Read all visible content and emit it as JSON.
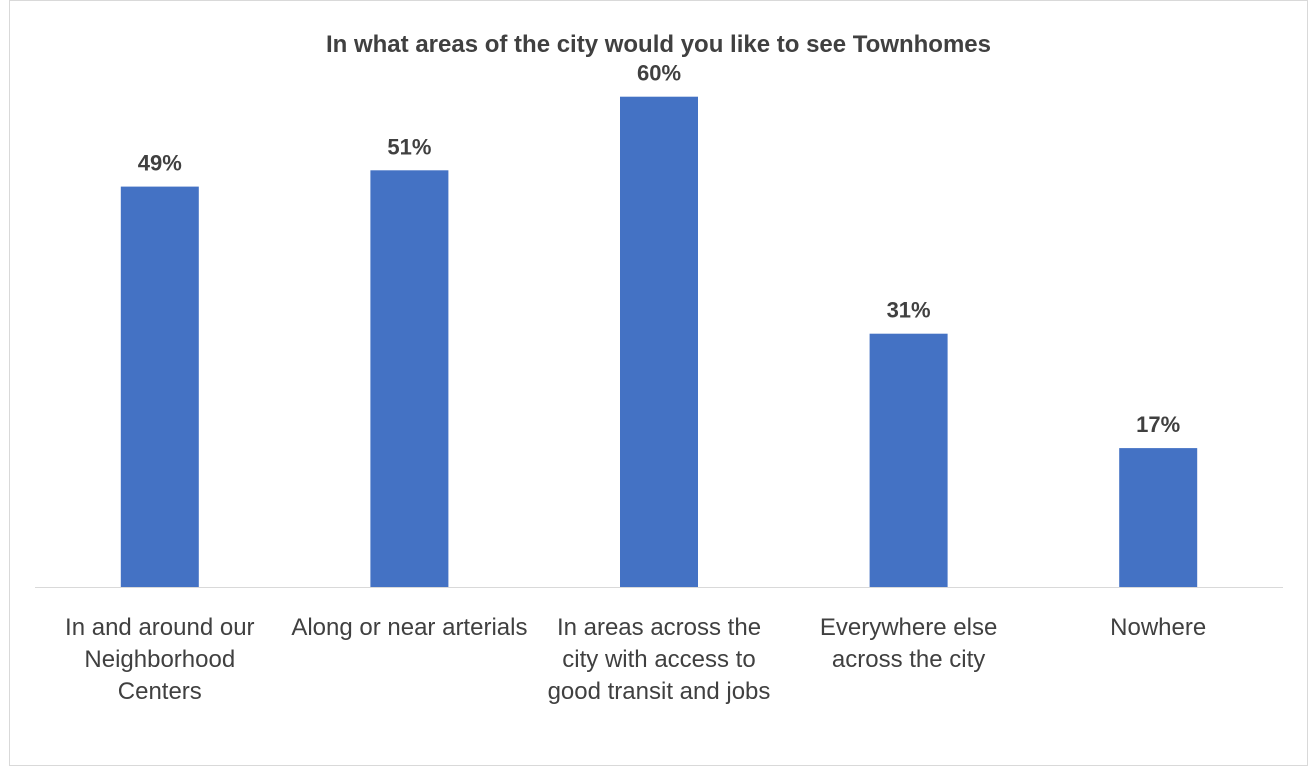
{
  "chart_data": {
    "type": "bar",
    "title": "In what areas of the city would you like to see Townhomes",
    "categories": [
      "In and around our Neighborhood Centers",
      "Along or near arterials",
      "In areas across the city with access to good transit and jobs",
      "Everywhere else across the city",
      "Nowhere"
    ],
    "values": [
      49,
      51,
      60,
      31,
      17
    ],
    "data_labels": [
      "49%",
      "51%",
      "60%",
      "31%",
      "17%"
    ],
    "ylim": [
      0,
      70
    ],
    "bar_color": "#4472C4",
    "grid": false,
    "legend": "none"
  }
}
